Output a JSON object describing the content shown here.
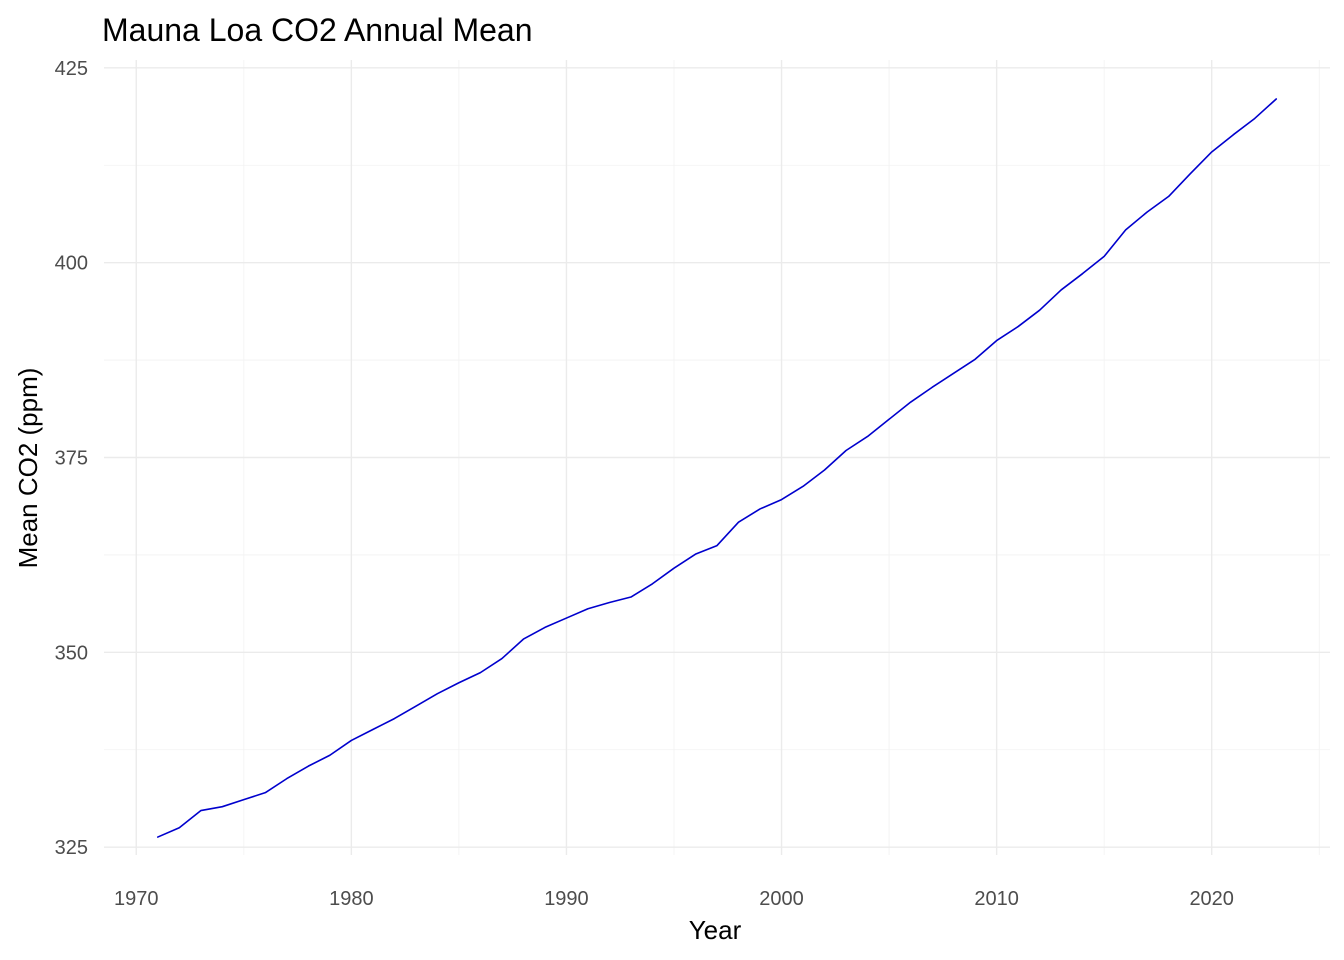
{
  "chart_data": {
    "type": "line",
    "title": "Mauna Loa CO2 Annual Mean",
    "xlabel": "Year",
    "ylabel": "Mean CO2 (ppm)",
    "xlim": [
      1968.5,
      2025.5
    ],
    "ylim": [
      324,
      426
    ],
    "x_ticks": [
      1970,
      1980,
      1990,
      2000,
      2010,
      2020
    ],
    "x_minor_ticks": [
      1975,
      1985,
      1995,
      2005,
      2015,
      2025
    ],
    "y_ticks": [
      325,
      350,
      375,
      400,
      425
    ],
    "y_minor_ticks": [
      337.5,
      362.5,
      387.5,
      412.5
    ],
    "grid": true,
    "legend": "none",
    "line_color": "#0000cd",
    "series": [
      {
        "x": [
          1971,
          1972,
          1973,
          1974,
          1975,
          1976,
          1977,
          1978,
          1979,
          1980,
          1981,
          1982,
          1983,
          1984,
          1985,
          1986,
          1987,
          1988,
          1989,
          1990,
          1991,
          1992,
          1993,
          1994,
          1995,
          1996,
          1997,
          1998,
          1999,
          2000,
          2001,
          2002,
          2003,
          2004,
          2005,
          2006,
          2007,
          2008,
          2009,
          2010,
          2011,
          2012,
          2013,
          2014,
          2015,
          2016,
          2017,
          2018,
          2019,
          2020,
          2021,
          2022,
          2023
        ],
        "values": [
          326.3,
          327.5,
          329.7,
          330.2,
          331.1,
          332.0,
          333.8,
          335.4,
          336.8,
          338.7,
          340.1,
          341.5,
          343.1,
          344.7,
          346.1,
          347.4,
          349.2,
          351.7,
          353.2,
          354.4,
          355.6,
          356.4,
          357.1,
          358.8,
          360.8,
          362.6,
          363.7,
          366.7,
          368.4,
          369.6,
          371.3,
          373.4,
          375.9,
          377.7,
          379.9,
          382.1,
          384.0,
          385.8,
          387.6,
          390.0,
          391.8,
          393.9,
          396.5,
          398.6,
          400.8,
          404.2,
          406.5,
          408.5,
          411.4,
          414.2,
          416.4,
          418.5,
          421.0
        ]
      }
    ]
  }
}
